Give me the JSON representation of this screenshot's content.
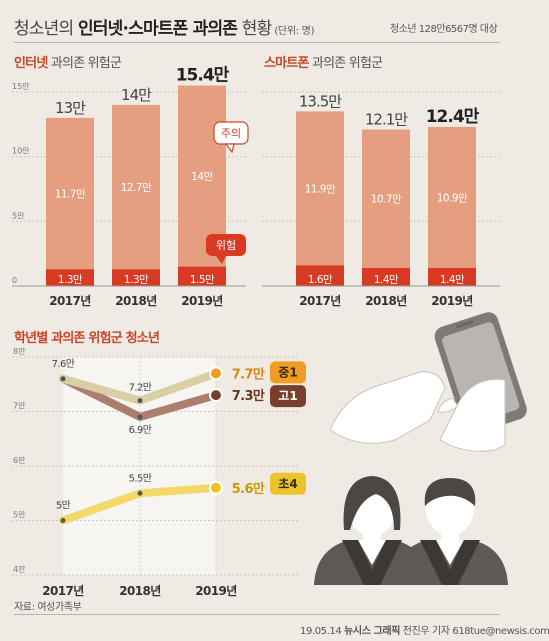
{
  "header": {
    "title_prefix": "청소년의 ",
    "title_main": "인터넷·스마트폰 과의존",
    "title_suffix": " 현황",
    "unit": " (단위: 명)",
    "subject": "청소년 128만6567명 대상"
  },
  "colors": {
    "bar_light": "#e59e7f",
    "bar_dark": "#d93a24",
    "accent_red": "#c9452a",
    "middle_line": "#d8cfa6",
    "high_line": "#ab7e6d",
    "elem_line": "#f3d96a",
    "marker_orange": "#ef9d23",
    "marker_brown": "#7a3e2c",
    "marker_yellow": "#ecc42a"
  },
  "chart_data": [
    {
      "type": "bar",
      "title_highlight": "인터넷",
      "title_rest": " 과의존 위험군",
      "categories": [
        "2017년",
        "2018년",
        "2019년"
      ],
      "ylim": [
        0,
        15
      ],
      "yticks": [
        0,
        5,
        10,
        15
      ],
      "ytick_labels": [
        "0",
        "5만",
        "10만",
        "15만"
      ],
      "series": [
        {
          "name": "위험",
          "values": [
            1.3,
            1.3,
            1.5
          ],
          "labels": [
            "1.3만",
            "1.3만",
            "1.5만"
          ]
        },
        {
          "name": "주의",
          "values": [
            11.7,
            12.7,
            14.0
          ],
          "labels": [
            "11.7만",
            "12.7만",
            "14만"
          ]
        }
      ],
      "totals": [
        13,
        14,
        15.4
      ],
      "total_labels": [
        "13만",
        "14만",
        "15.4만"
      ]
    },
    {
      "type": "bar",
      "title_highlight": "스마트폰",
      "title_rest": " 과의존 위험군",
      "categories": [
        "2017년",
        "2018년",
        "2019년"
      ],
      "ylim": [
        0,
        15
      ],
      "series": [
        {
          "name": "위험",
          "values": [
            1.6,
            1.4,
            1.4
          ],
          "labels": [
            "1.6만",
            "1.4만",
            "1.4만"
          ]
        },
        {
          "name": "주의",
          "values": [
            11.9,
            10.7,
            10.9
          ],
          "labels": [
            "11.9만",
            "10.7만",
            "10.9만"
          ]
        }
      ],
      "totals": [
        13.5,
        12.1,
        12.4
      ],
      "total_labels": [
        "13.5만",
        "12.1만",
        "12.4만"
      ]
    },
    {
      "type": "line",
      "title": "학년별 과의존 위험군 청소년",
      "x": [
        "2017년",
        "2018년",
        "2019년"
      ],
      "ylim": [
        4,
        8
      ],
      "yticks": [
        4,
        5,
        6,
        7,
        8
      ],
      "ytick_labels": [
        "4만",
        "5만",
        "6만",
        "7만",
        "8만"
      ],
      "series": [
        {
          "name": "중1",
          "values": [
            7.6,
            7.2,
            7.7
          ],
          "labels": [
            "7.6만",
            "7.2만",
            "7.7만"
          ]
        },
        {
          "name": "고1",
          "values": [
            7.6,
            6.9,
            7.3
          ],
          "labels": [
            "",
            "6.9만",
            "7.3만"
          ]
        },
        {
          "name": "초4",
          "values": [
            5.0,
            5.5,
            5.6
          ],
          "labels": [
            "5만",
            "5.5만",
            "5.6만"
          ]
        }
      ]
    }
  ],
  "footer": {
    "source": "자료: 여성가족부",
    "credit_date": "19.05.14 ",
    "credit_org": "뉴시스 그래픽",
    "credit_person": " 전진우 기자 618tue@newsis.com"
  }
}
